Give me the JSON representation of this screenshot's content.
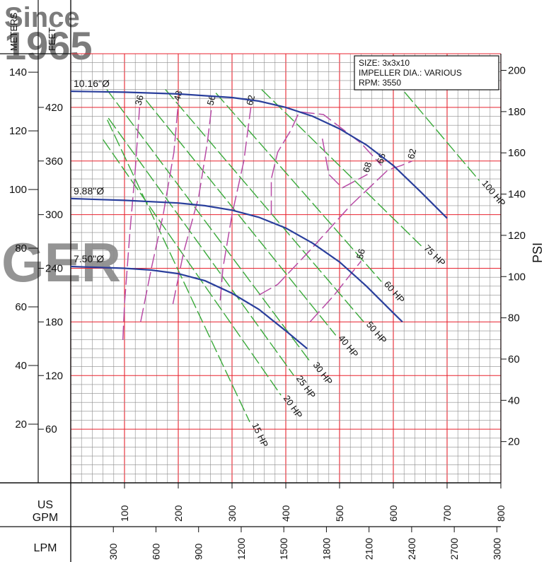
{
  "watermark": {
    "line1": "Since",
    "line2": "1965",
    "brand": "GER",
    "tone": "#c9d4e6"
  },
  "colors": {
    "grid_minor": "#8c8c8c",
    "grid_major": "#e8232f",
    "curve": "#2a3f9c",
    "hp": "#3aaa3a",
    "eff": "#b84ba6",
    "text": "#111111"
  },
  "info_box": {
    "size": "SIZE: 3x3x10",
    "impeller": "IMPELLER DIA.: VARIOUS",
    "rpm": "RPM: 3550"
  },
  "chart_data": {
    "type": "line",
    "x_axes": {
      "gpm": {
        "label": "US\nGPM",
        "ticks": [
          "100",
          "200",
          "300",
          "400",
          "500",
          "600",
          "700",
          "800"
        ],
        "range": [
          0,
          800
        ]
      },
      "lpm": {
        "label": "LPM",
        "ticks": [
          "300",
          "600",
          "900",
          "1200",
          "1500",
          "1800",
          "2100",
          "2400",
          "2700",
          "3000"
        ]
      }
    },
    "y_axes": {
      "meters": {
        "label": "METERS",
        "ticks": [
          "20",
          "40",
          "60",
          "80",
          "100",
          "120",
          "140"
        ]
      },
      "feet": {
        "label": "FEET",
        "ticks": [
          "60",
          "120",
          "180",
          "240",
          "300",
          "360",
          "420"
        ],
        "range": [
          0,
          480
        ]
      },
      "psi": {
        "label": "PSI",
        "ticks": [
          "20",
          "40",
          "60",
          "80",
          "100",
          "120",
          "140",
          "160",
          "180",
          "200"
        ]
      }
    },
    "grid": true,
    "series": [
      {
        "name": "10.16\"Ø",
        "x": [
          0,
          100,
          200,
          300,
          350,
          400,
          450,
          500,
          550,
          600,
          650,
          700
        ],
        "y": [
          438,
          437,
          435,
          431,
          427,
          420,
          410,
          396,
          378,
          355,
          326,
          296
        ]
      },
      {
        "name": "9.88\"Ø",
        "x": [
          0,
          100,
          200,
          250,
          300,
          350,
          400,
          450,
          500,
          550,
          600,
          617
        ],
        "y": [
          318,
          316,
          313,
          310,
          305,
          297,
          285,
          268,
          247,
          220,
          190,
          180
        ]
      },
      {
        "name": "7.50\"Ø",
        "x": [
          0,
          100,
          150,
          200,
          250,
          300,
          350,
          400,
          440
        ],
        "y": [
          242,
          240,
          238,
          234,
          226,
          212,
          194,
          170,
          150
        ]
      }
    ],
    "hp_lines": [
      {
        "label": "15 HP",
        "x1": 68,
        "y1": 406,
        "x2": 333,
        "y2": 68
      },
      {
        "label": "20 HP",
        "x1": 60,
        "y1": 384,
        "x2": 391,
        "y2": 98
      },
      {
        "label": "25 HP",
        "x1": 70,
        "y1": 408,
        "x2": 415,
        "y2": 120
      },
      {
        "label": "30 HP",
        "x1": 67,
        "y1": 440,
        "x2": 446,
        "y2": 135
      },
      {
        "label": "40 HP",
        "x1": 140,
        "y1": 428,
        "x2": 493,
        "y2": 165
      },
      {
        "label": "50 HP",
        "x1": 176,
        "y1": 440,
        "x2": 545,
        "y2": 180
      },
      {
        "label": "60 HP",
        "x1": 270,
        "y1": 436,
        "x2": 578,
        "y2": 225
      },
      {
        "label": "75 HP",
        "x1": 355,
        "y1": 440,
        "x2": 652,
        "y2": 265
      },
      {
        "label": "100 HP",
        "x1": 621,
        "y1": 437,
        "x2": 760,
        "y2": 338
      }
    ],
    "efficiency_curves": [
      {
        "label": "36",
        "x": [
          97,
          100,
          110,
          120,
          128
        ],
        "y": [
          160,
          200,
          280,
          350,
          420
        ]
      },
      {
        "label": "48",
        "x": [
          130,
          150,
          172,
          192,
          200
        ],
        "y": [
          180,
          240,
          300,
          370,
          425
        ]
      },
      {
        "label": "56",
        "x": [
          190,
          210,
          238,
          254,
          262
        ],
        "y": [
          200,
          258,
          320,
          380,
          420
        ]
      },
      {
        "label": "62",
        "x": [
          278,
          283,
          300,
          322,
          335
        ],
        "y": [
          204,
          240,
          300,
          360,
          420
        ]
      },
      {
        "label": "66",
        "x": [
          373,
          373,
          385,
          410,
          425,
          470,
          540,
          578
        ],
        "y": [
          300,
          340,
          370,
          395,
          415,
          412,
          380,
          355
        ]
      },
      {
        "label": "68",
        "x": [
          468,
          480,
          505,
          552
        ],
        "y": [
          385,
          345,
          330,
          345
        ]
      },
      {
        "label": "62",
        "x": [
          350,
          385,
          445,
          520,
          590,
          615,
          635
        ],
        "y": [
          210,
          222,
          260,
          310,
          350,
          355,
          360
        ]
      },
      {
        "label": "56",
        "x": [
          445,
          490,
          540
        ],
        "y": [
          180,
          210,
          248
        ]
      }
    ],
    "annotations": [
      "SIZE: 3x3x10",
      "IMPELLER DIA.: VARIOUS",
      "RPM: 3550"
    ]
  }
}
